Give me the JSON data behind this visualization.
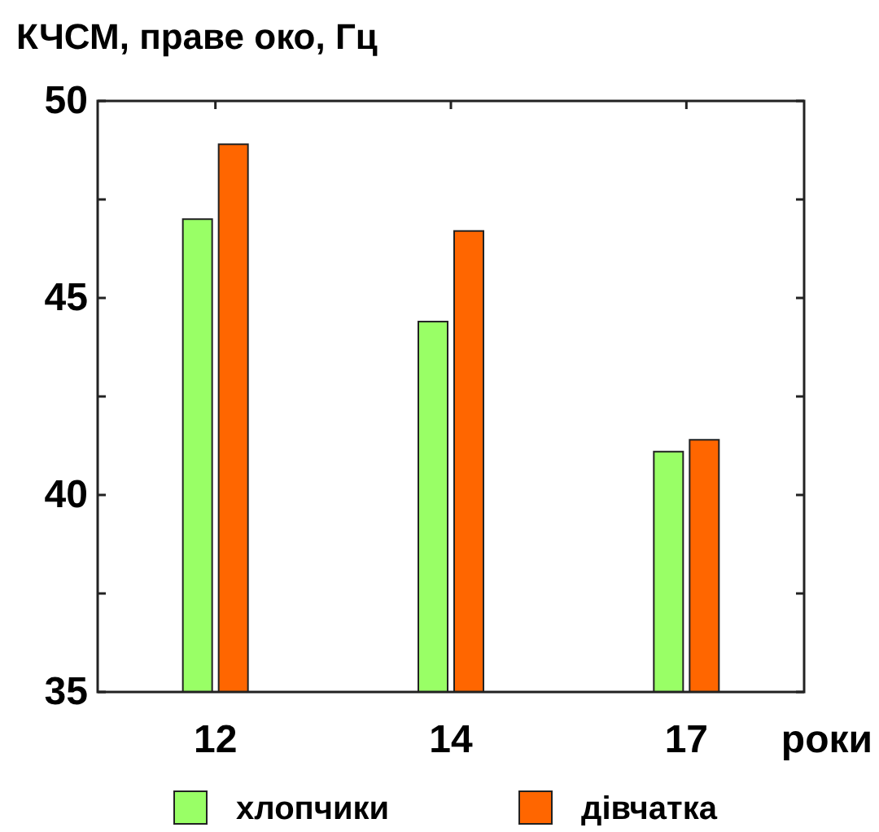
{
  "chart_data": {
    "type": "bar",
    "ylabel": "КЧСМ, праве око, Гц",
    "xlabel": "роки",
    "categories": [
      "12",
      "14",
      "17"
    ],
    "series": [
      {
        "name": "хлопчики",
        "color": "#99ff66",
        "values": [
          47.0,
          44.4,
          41.1
        ]
      },
      {
        "name": "дівчатка",
        "color": "#ff6600",
        "values": [
          48.9,
          46.7,
          41.4
        ]
      }
    ],
    "ylim": [
      35,
      50
    ],
    "yticks": [
      35,
      {
        "value": 37.5,
        "label": null
      },
      40,
      {
        "value": 42.5,
        "label": null
      },
      45,
      {
        "value": 47.5,
        "label": null
      },
      50
    ],
    "grid": false,
    "legend": "bottom"
  }
}
